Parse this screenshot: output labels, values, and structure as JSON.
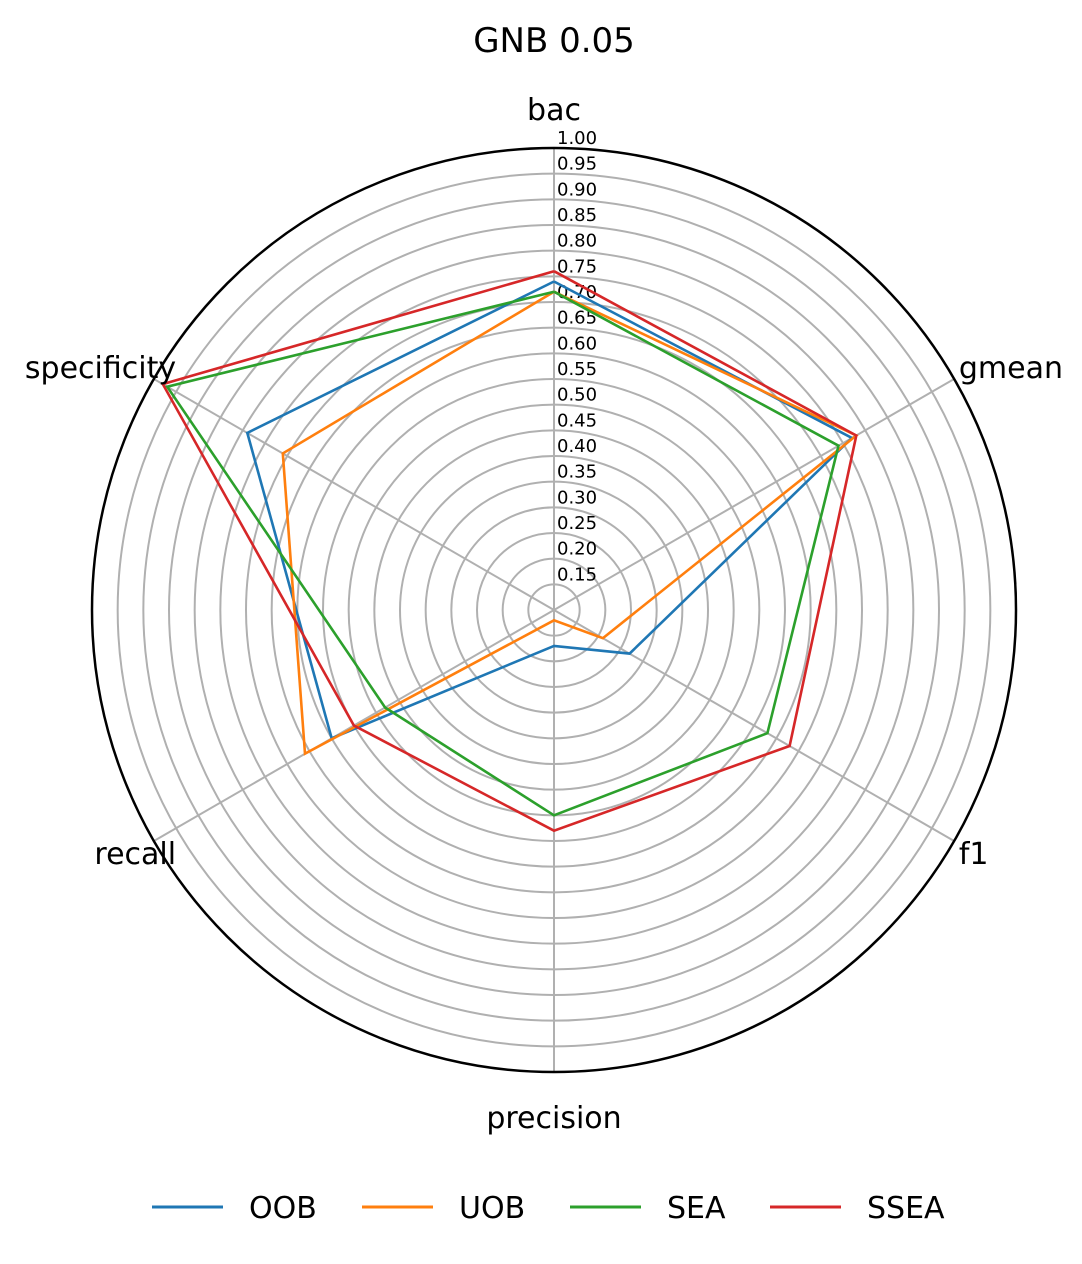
{
  "chart_data": {
    "type": "radar",
    "title": "GNB 0.05",
    "axes": [
      "bac",
      "gmean",
      "f1",
      "precision",
      "recall",
      "specificity"
    ],
    "rlim": [
      0.1,
      1.0
    ],
    "r_ticks": [
      "0.15",
      "0.20",
      "0.25",
      "0.30",
      "0.35",
      "0.40",
      "0.45",
      "0.50",
      "0.55",
      "0.60",
      "0.65",
      "0.70",
      "0.75",
      "0.80",
      "0.85",
      "0.90",
      "0.95",
      "1.00"
    ],
    "grid": true,
    "legend_position": "bottom",
    "series": [
      {
        "name": "OOB",
        "color": "#1f77b4",
        "values": [
          0.74,
          0.77,
          0.27,
          0.17,
          0.6,
          0.79
        ]
      },
      {
        "name": "UOB",
        "color": "#ff7f0e",
        "values": [
          0.72,
          0.78,
          0.21,
          0.12,
          0.66,
          0.71
        ]
      },
      {
        "name": "SEA",
        "color": "#2ca02c",
        "values": [
          0.72,
          0.74,
          0.58,
          0.5,
          0.48,
          0.97
        ]
      },
      {
        "name": "SSEA",
        "color": "#d62728",
        "values": [
          0.76,
          0.78,
          0.63,
          0.53,
          0.55,
          0.98
        ]
      }
    ]
  }
}
